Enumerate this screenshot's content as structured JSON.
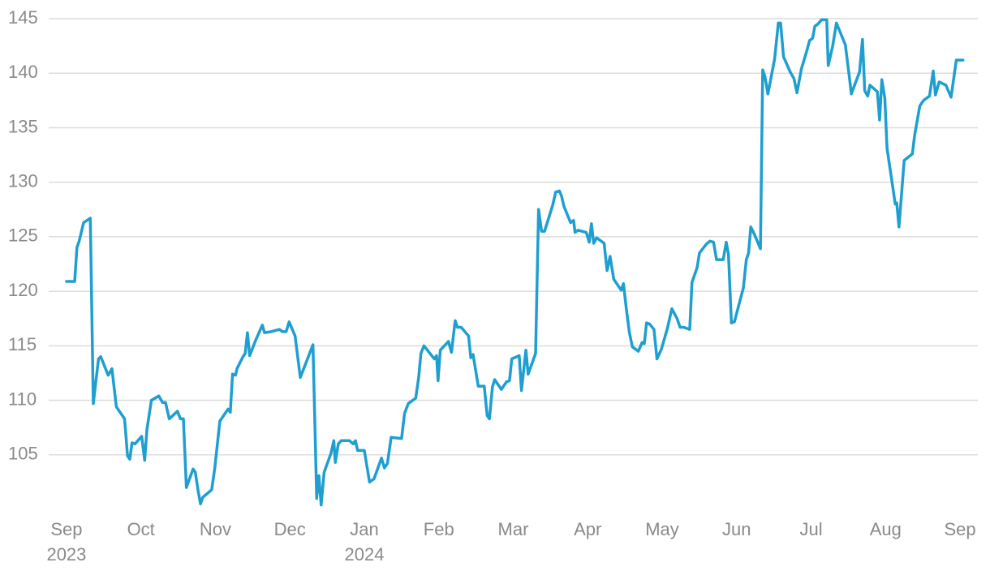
{
  "chart_data": {
    "type": "line",
    "color": "#1e9fd0",
    "grid": true,
    "xlim": [
      -0.25,
      12.25
    ],
    "ylim": [
      100,
      145
    ],
    "yticks": [
      105,
      110,
      115,
      120,
      125,
      130,
      135,
      140,
      145
    ],
    "xticks": [
      {
        "value": 0,
        "label": "Sep\n2023"
      },
      {
        "value": 1,
        "label": "Oct"
      },
      {
        "value": 2,
        "label": "Nov"
      },
      {
        "value": 3,
        "label": "Dec"
      },
      {
        "value": 4,
        "label": "Jan\n2024"
      },
      {
        "value": 5,
        "label": "Feb"
      },
      {
        "value": 6,
        "label": "Mar"
      },
      {
        "value": 7,
        "label": "Apr"
      },
      {
        "value": 8,
        "label": "May"
      },
      {
        "value": 9,
        "label": "Jun"
      },
      {
        "value": 10,
        "label": "Jul"
      },
      {
        "value": 11,
        "label": "Aug"
      },
      {
        "value": 12,
        "label": "Sep"
      }
    ],
    "x": [
      0,
      0.11,
      0.14,
      0.17,
      0.23,
      0.32,
      0.36,
      0.43,
      0.46,
      0.56,
      0.61,
      0.67,
      0.78,
      0.82,
      0.85,
      0.88,
      0.92,
      1.01,
      1.05,
      1.08,
      1.14,
      1.24,
      1.29,
      1.33,
      1.38,
      1.49,
      1.53,
      1.57,
      1.61,
      1.7,
      1.73,
      1.77,
      1.8,
      1.83,
      1.95,
      1.99,
      2.06,
      2.17,
      2.2,
      2.23,
      2.27,
      2.29,
      2.37,
      2.4,
      2.43,
      2.46,
      2.54,
      2.63,
      2.66,
      2.75,
      2.86,
      2.9,
      2.95,
      2.99,
      3.07,
      3.14,
      3.22,
      3.31,
      3.36,
      3.39,
      3.42,
      3.46,
      3.55,
      3.59,
      3.61,
      3.65,
      3.69,
      3.8,
      3.85,
      3.88,
      3.91,
      4.0,
      4.07,
      4.13,
      4.23,
      4.27,
      4.31,
      4.36,
      4.5,
      4.54,
      4.59,
      4.69,
      4.73,
      4.76,
      4.8,
      4.94,
      4.97,
      4.99,
      5.02,
      5.13,
      5.17,
      5.22,
      5.25,
      5.3,
      5.4,
      5.43,
      5.46,
      5.53,
      5.61,
      5.65,
      5.68,
      5.72,
      5.75,
      5.84,
      5.91,
      5.95,
      5.98,
      6.08,
      6.11,
      6.17,
      6.2,
      6.3,
      6.34,
      6.38,
      6.42,
      6.53,
      6.57,
      6.62,
      6.65,
      6.68,
      6.77,
      6.81,
      6.83,
      6.87,
      6.98,
      7.02,
      7.05,
      7.08,
      7.12,
      7.22,
      7.26,
      7.3,
      7.35,
      7.45,
      7.48,
      7.52,
      7.56,
      7.6,
      7.68,
      7.73,
      7.76,
      7.79,
      7.83,
      7.89,
      7.93,
      7.99,
      8.07,
      8.13,
      8.2,
      8.24,
      8.29,
      8.37,
      8.4,
      8.47,
      8.5,
      8.59,
      8.64,
      8.69,
      8.73,
      8.82,
      8.86,
      8.89,
      8.93,
      8.97,
      9.09,
      9.13,
      9.16,
      9.19,
      9.24,
      9.32,
      9.35,
      9.38,
      9.42,
      9.51,
      9.56,
      9.59,
      9.63,
      9.72,
      9.77,
      9.81,
      9.87,
      9.94,
      9.98,
      10.02,
      10.05,
      10.09,
      10.14,
      10.21,
      10.23,
      10.29,
      10.34,
      10.46,
      10.52,
      10.54,
      10.65,
      10.69,
      10.72,
      10.76,
      10.79,
      10.89,
      10.92,
      10.95,
      10.99,
      11.02,
      11.13,
      11.15,
      11.18,
      11.25,
      11.36,
      11.39,
      11.46,
      11.51,
      11.59,
      11.64,
      11.67,
      11.72,
      11.81,
      11.88,
      11.95,
      12.04
    ],
    "values": [
      120.9,
      120.9,
      124.0,
      124.6,
      126.3,
      126.7,
      109.7,
      113.8,
      114.0,
      112.3,
      112.9,
      109.4,
      108.3,
      104.9,
      104.6,
      106.1,
      106.0,
      106.7,
      104.5,
      107.3,
      110.0,
      110.4,
      109.8,
      109.8,
      108.3,
      109.0,
      108.3,
      108.3,
      102.0,
      103.7,
      103.4,
      101.6,
      100.5,
      101.1,
      101.8,
      103.7,
      108.1,
      109.2,
      108.9,
      112.4,
      112.3,
      112.9,
      114.0,
      114.3,
      116.2,
      114.1,
      115.5,
      116.9,
      116.2,
      116.3,
      116.5,
      116.3,
      116.3,
      117.2,
      115.9,
      112.1,
      113.5,
      115.1,
      101.0,
      103.1,
      100.4,
      103.4,
      105.1,
      106.3,
      104.3,
      106.0,
      106.3,
      106.3,
      106.0,
      106.3,
      105.4,
      105.4,
      102.5,
      102.8,
      104.7,
      103.8,
      104.2,
      106.6,
      106.5,
      108.8,
      109.7,
      110.2,
      112.1,
      114.3,
      115.0,
      113.8,
      114.1,
      111.8,
      114.6,
      115.4,
      114.4,
      117.3,
      116.7,
      116.7,
      115.9,
      113.9,
      114.2,
      111.3,
      111.3,
      108.6,
      108.3,
      111.2,
      111.9,
      111.0,
      111.7,
      111.8,
      113.8,
      114.1,
      110.9,
      114.6,
      112.4,
      114.3,
      127.5,
      125.5,
      125.5,
      127.9,
      129.1,
      129.2,
      128.7,
      127.8,
      126.3,
      126.5,
      125.4,
      125.6,
      125.4,
      124.5,
      126.2,
      124.4,
      124.9,
      124.4,
      121.9,
      123.2,
      121.1,
      120.1,
      120.7,
      118.3,
      116.2,
      114.9,
      114.5,
      115.3,
      115.2,
      117.1,
      117.0,
      116.5,
      113.8,
      114.7,
      116.6,
      118.4,
      117.5,
      116.7,
      116.7,
      116.5,
      120.8,
      122.2,
      123.5,
      124.3,
      124.6,
      124.5,
      122.9,
      122.9,
      124.5,
      123.4,
      117.1,
      117.2,
      120.3,
      122.9,
      123.5,
      125.9,
      125.2,
      123.9,
      140.3,
      139.7,
      138.1,
      141.3,
      144.6,
      144.6,
      141.5,
      140.1,
      139.5,
      138.2,
      140.4,
      142.0,
      143.0,
      143.2,
      144.3,
      144.5,
      144.9,
      144.9,
      140.7,
      142.5,
      144.6,
      142.6,
      139.3,
      138.1,
      140.1,
      143.1,
      138.4,
      137.9,
      138.9,
      138.3,
      135.7,
      139.4,
      137.7,
      133.1,
      128.0,
      128.1,
      125.9,
      132.0,
      132.6,
      134.3,
      137.0,
      137.5,
      137.9,
      140.2,
      138.0,
      139.2,
      138.9,
      137.8,
      141.2,
      141.2
    ]
  }
}
